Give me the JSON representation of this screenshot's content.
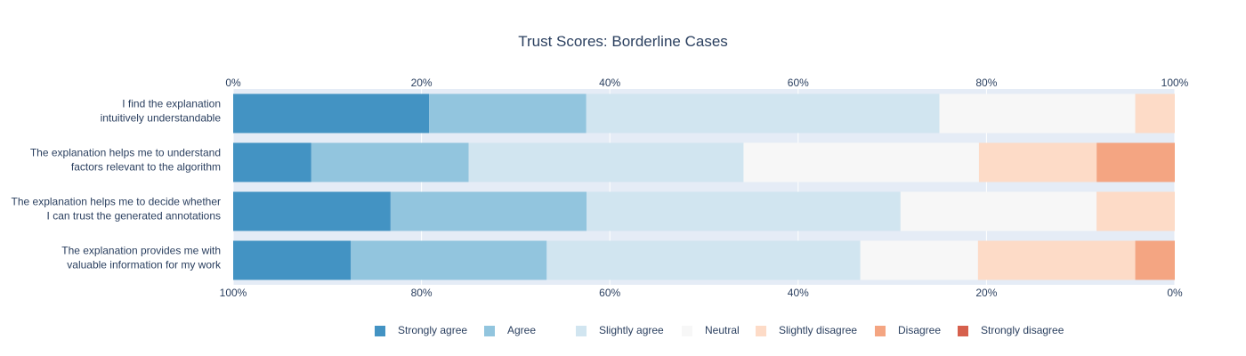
{
  "chart_data": {
    "type": "bar",
    "orientation": "horizontal",
    "barmode": "stack",
    "title": "Trust Scores: Borderline Cases",
    "categories": [
      [
        "I find the explanation",
        "intuitively understandable"
      ],
      [
        "The explanation helps me to understand",
        "factors relevant to the algorithm"
      ],
      [
        "The explanation helps me to decide whether",
        "I can trust the generated annotations"
      ],
      [
        "The explanation provides me with",
        "valuable information for my work"
      ]
    ],
    "series": [
      {
        "name": "Strongly agree",
        "color": "#4393c3",
        "values": [
          20.8,
          8.3,
          16.7,
          12.5
        ]
      },
      {
        "name": "Agree",
        "color": "#92c5de",
        "values": [
          16.7,
          16.7,
          20.8,
          20.8
        ]
      },
      {
        "name": "Slightly agree",
        "color": "#d1e5f0",
        "values": [
          37.5,
          29.2,
          33.3,
          33.3
        ]
      },
      {
        "name": "Neutral",
        "color": "#f7f7f7",
        "values": [
          20.8,
          25.0,
          20.8,
          12.5
        ]
      },
      {
        "name": "Slightly disagree",
        "color": "#fddbc7",
        "values": [
          4.2,
          12.5,
          8.3,
          16.7
        ]
      },
      {
        "name": "Disagree",
        "color": "#f4a582",
        "values": [
          0,
          8.3,
          0,
          4.2
        ]
      },
      {
        "name": "Strongly disagree",
        "color": "#d6604d",
        "values": [
          0,
          0,
          0,
          0
        ]
      }
    ],
    "xaxis_top": {
      "range": [
        0,
        100
      ],
      "ticks": [
        "0%",
        "20%",
        "40%",
        "60%",
        "80%",
        "100%"
      ]
    },
    "xaxis_bottom": {
      "range": [
        100,
        0
      ],
      "ticks": [
        "100%",
        "80%",
        "60%",
        "40%",
        "20%",
        "0%"
      ]
    },
    "grid": true,
    "legend_position": "bottom-center",
    "plot_background": "#e5ecf6"
  }
}
